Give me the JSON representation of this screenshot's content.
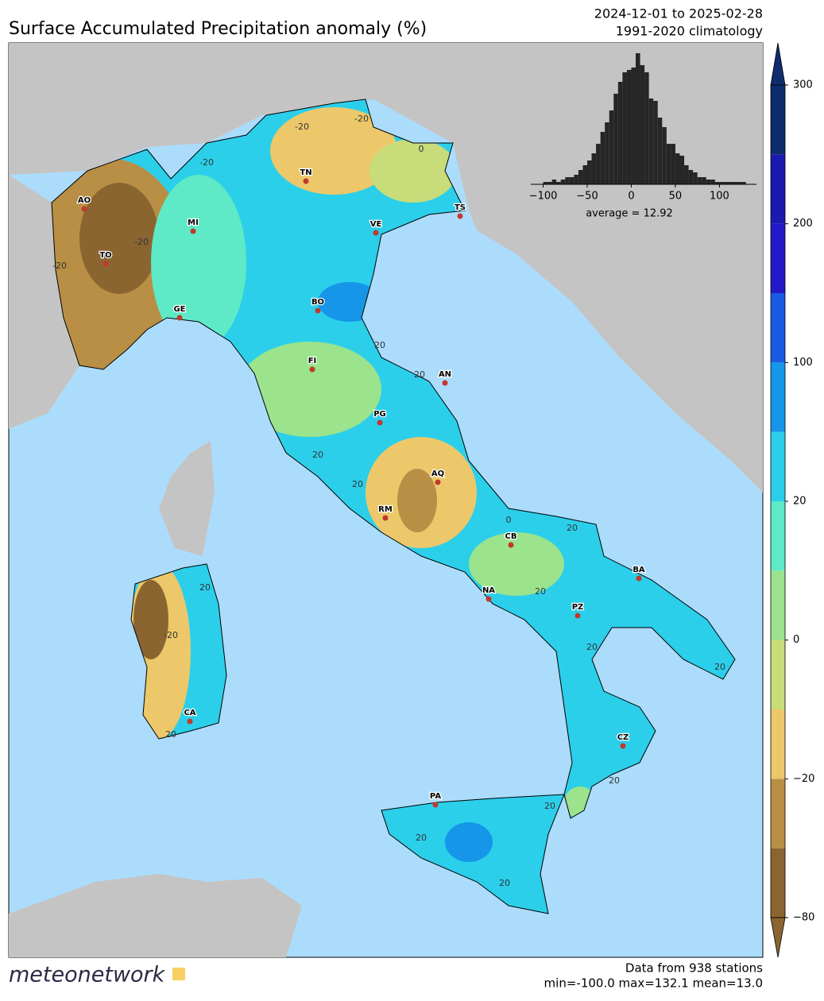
{
  "title": "Surface Accumulated Precipitation anomaly (%)",
  "period": "2024-12-01 to 2025-02-28",
  "climatology": "1991-2020 climatology",
  "footer": {
    "stations": "Data from 938 stations",
    "stats": "min=-100.0 max=132.1 mean=13.0",
    "logo": "meteonetwork"
  },
  "cities": [
    "AO",
    "MI",
    "TO",
    "GE",
    "TN",
    "VE",
    "TS",
    "BO",
    "FI",
    "AN",
    "PG",
    "AQ",
    "RM",
    "CB",
    "NA",
    "BA",
    "PZ",
    "CA",
    "CZ",
    "PA"
  ],
  "contour_labels": [
    -20,
    -20,
    -20,
    -20,
    -20,
    -20,
    20,
    20,
    20,
    20,
    20,
    20,
    20,
    20,
    20,
    20,
    20,
    20,
    20,
    20,
    0,
    0
  ],
  "colorbar": {
    "boundaries": [
      -80,
      -50,
      -20,
      -10,
      0,
      10,
      20,
      50,
      100,
      150,
      200,
      250,
      300
    ],
    "colors": [
      "#8b6530",
      "#b98f45",
      "#ecc86a",
      "#c8dc7a",
      "#9be38c",
      "#5eeac6",
      "#2bcfea",
      "#1696e8",
      "#1a5ae0",
      "#2318c8",
      "#1c19b0",
      "#0f2c6e"
    ],
    "ticks": [
      {
        "value": -80,
        "label": "−80"
      },
      {
        "value": -20,
        "label": "−20"
      },
      0,
      20,
      100,
      200,
      300
    ]
  },
  "chart_data": {
    "type": "histogram",
    "bins": [
      -100,
      -95,
      -90,
      -85,
      -80,
      -75,
      -70,
      -65,
      -60,
      -55,
      -50,
      -45,
      -40,
      -35,
      -30,
      -25,
      -20,
      -15,
      -10,
      -5,
      0,
      5,
      10,
      15,
      20,
      25,
      30,
      35,
      40,
      45,
      50,
      55,
      60,
      65,
      70,
      75,
      80,
      85,
      90,
      95,
      100,
      105,
      110,
      115,
      120,
      125,
      130
    ],
    "values": [
      1,
      1,
      2,
      1,
      2,
      3,
      3,
      4,
      6,
      8,
      10,
      13,
      17,
      22,
      26,
      31,
      38,
      43,
      47,
      48,
      49,
      55,
      50,
      47,
      36,
      35,
      28,
      24,
      17,
      17,
      13,
      12,
      8,
      6,
      5,
      3,
      3,
      2,
      2,
      1,
      1,
      1,
      1,
      1,
      1,
      1
    ],
    "color": "#262626",
    "xlim": [
      -114,
      142
    ],
    "xticks": [
      {
        "value": -100,
        "label": "−100"
      },
      {
        "value": -50,
        "label": "−50"
      },
      0,
      50,
      100
    ],
    "annotation": "average = 12.92"
  }
}
